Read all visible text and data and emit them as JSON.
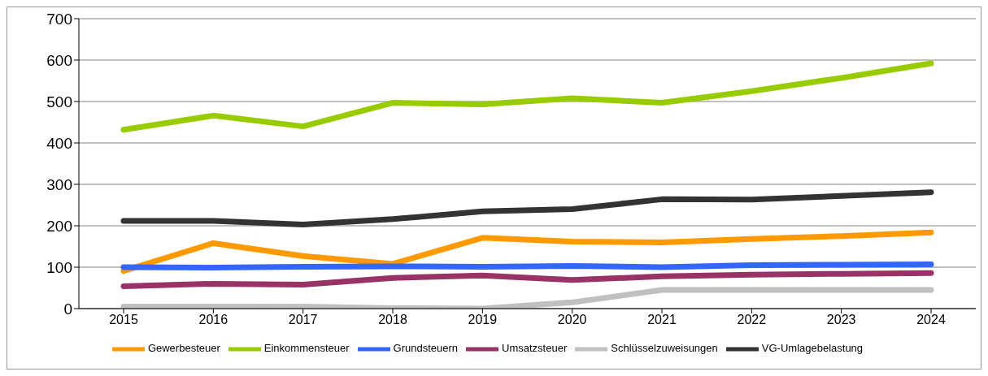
{
  "chart_data": {
    "type": "line",
    "categories": [
      "2015",
      "2016",
      "2017",
      "2018",
      "2019",
      "2020",
      "2021",
      "2022",
      "2023",
      "2024"
    ],
    "series": [
      {
        "name": "Gewerbesteuer",
        "color": "#ff9900",
        "values": [
          91,
          158,
          127,
          108,
          171,
          162,
          160,
          168,
          175,
          184
        ]
      },
      {
        "name": "Einkommensteuer",
        "color": "#99cc00",
        "values": [
          432,
          466,
          440,
          497,
          493,
          508,
          497,
          525,
          557,
          592
        ]
      },
      {
        "name": "Grundsteuern",
        "color": "#3366ff",
        "values": [
          100,
          99,
          101,
          102,
          101,
          103,
          100,
          105,
          106,
          107
        ]
      },
      {
        "name": "Umsatzsteuer",
        "color": "#993366",
        "values": [
          54,
          60,
          58,
          74,
          80,
          69,
          78,
          82,
          84,
          86
        ]
      },
      {
        "name": "Schlüsselzuweisungen",
        "color": "#c0c0c0",
        "values": [
          5,
          5,
          5,
          1,
          0,
          15,
          45,
          45,
          45,
          45
        ]
      },
      {
        "name": "VG-Umlagebelastung",
        "color": "#333333",
        "values": [
          212,
          212,
          203,
          216,
          235,
          240,
          264,
          263,
          272,
          281
        ]
      }
    ],
    "ylim": [
      0,
      700
    ],
    "yticks": [
      0,
      100,
      200,
      300,
      400,
      500,
      600,
      700
    ],
    "grid": "y",
    "legend": "bottom",
    "marker": "none",
    "line_style": "solid"
  }
}
